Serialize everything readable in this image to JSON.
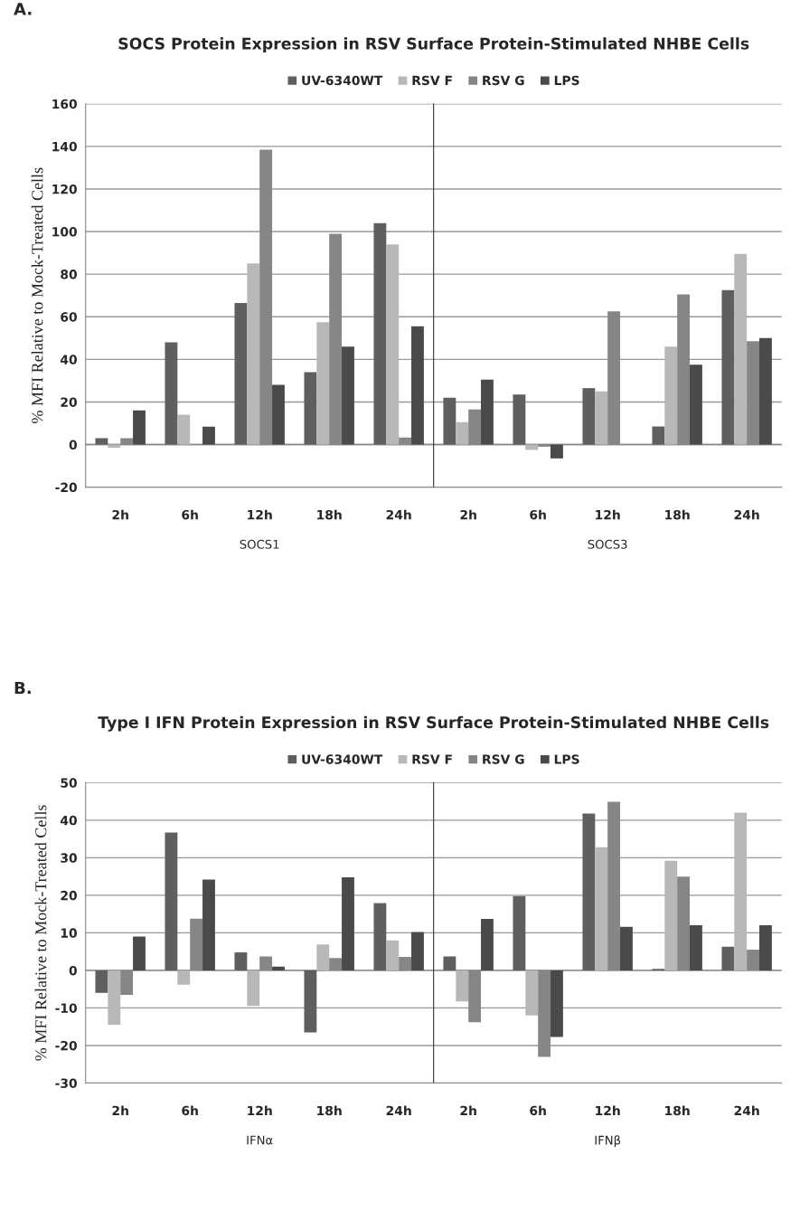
{
  "chart_data": [
    {
      "type": "bar",
      "title": "SOCS Protein Expression in RSV Surface Protein-Stimulated NHBE Cells",
      "ylabel": "% MFI Relative to Mock-Treated Cells",
      "xlabel": "SOCS1",
      "categories": [
        "2h",
        "6h",
        "12h",
        "18h",
        "24h"
      ],
      "series": [
        {
          "name": "UV-6340WT",
          "color": "#5f5f5f",
          "values": [
            3,
            48,
            66.5,
            34,
            104
          ]
        },
        {
          "name": "RSV F",
          "color": "#b8b8b8",
          "values": [
            -1.5,
            14,
            85,
            57.5,
            94
          ]
        },
        {
          "name": "RSV G",
          "color": "#868686",
          "values": [
            3,
            0,
            138.5,
            99,
            3.3
          ]
        },
        {
          "name": "LPS",
          "color": "#4a4a4a",
          "values": [
            16,
            8.4,
            28,
            46,
            55.5
          ]
        }
      ],
      "ylim": [
        -20,
        160
      ],
      "yticks": [
        -20,
        0,
        20,
        40,
        60,
        80,
        100,
        120,
        140,
        160
      ],
      "grid": "y",
      "legend": "top",
      "annotations": [
        "A."
      ]
    },
    {
      "type": "bar",
      "xlabel": "SOCS3",
      "categories": [
        "2h",
        "6h",
        "12h",
        "18h",
        "24h"
      ],
      "series": [
        {
          "color": "#5f5f5f",
          "values": [
            22,
            23.5,
            26.5,
            8.5,
            72.5
          ]
        },
        {
          "color": "#b8b8b8",
          "values": [
            10.5,
            -2.5,
            25,
            46,
            89.5
          ]
        },
        {
          "color": "#868686",
          "values": [
            16.5,
            -1,
            62.5,
            70.5,
            48.5
          ]
        },
        {
          "color": "#4a4a4a",
          "values": [
            30.5,
            -6.5,
            0,
            37.5,
            50
          ]
        }
      ],
      "ylim": [
        -20,
        160
      ],
      "yticks": [
        -20,
        0,
        20,
        40,
        60,
        80,
        100,
        120,
        140,
        160
      ],
      "grid": "y",
      "tick_labels": "x"
    },
    {
      "type": "bar",
      "title": "Type I IFN Protein Expression in RSV Surface Protein-Stimulated NHBE Cells",
      "ylabel": "% MFI Relative to Mock-Treated Cells",
      "xlabel": "IFNα",
      "categories": [
        "2h",
        "6h",
        "12h",
        "18h",
        "24h"
      ],
      "series": [
        {
          "name": "UV-6340WT",
          "color": "#5f5f5f",
          "values": [
            -6,
            36.7,
            4.8,
            -16.5,
            17.9
          ]
        },
        {
          "name": "RSV F",
          "color": "#b8b8b8",
          "values": [
            -14.5,
            -3.8,
            -9.5,
            6.9,
            8
          ]
        },
        {
          "name": "RSV G",
          "color": "#868686",
          "values": [
            -6.5,
            13.8,
            3.7,
            3.3,
            3.6
          ]
        },
        {
          "name": "LPS",
          "color": "#4a4a4a",
          "values": [
            9,
            24.2,
            1,
            24.8,
            10.2
          ]
        }
      ],
      "ylim": [
        -30,
        50
      ],
      "yticks": [
        -30,
        -20,
        -10,
        0,
        10,
        20,
        30,
        40,
        50
      ],
      "grid": "y",
      "legend": "top",
      "annotations": [
        "B."
      ]
    },
    {
      "type": "bar",
      "xlabel": "IFNβ",
      "categories": [
        "2h",
        "6h",
        "12h",
        "18h",
        "24h"
      ],
      "series": [
        {
          "color": "#5f5f5f",
          "values": [
            3.7,
            19.8,
            41.8,
            0.4,
            6.3
          ]
        },
        {
          "color": "#b8b8b8",
          "values": [
            -8.3,
            -12,
            32.8,
            29.2,
            42
          ]
        },
        {
          "color": "#868686",
          "values": [
            -13.8,
            -23,
            44.9,
            25,
            5.5
          ]
        },
        {
          "color": "#4a4a4a",
          "values": [
            13.7,
            -17.7,
            11.6,
            12,
            12
          ]
        }
      ],
      "ylim": [
        -30,
        50
      ],
      "yticks": [
        -30,
        -20,
        -10,
        0,
        10,
        20,
        30,
        40,
        50
      ],
      "grid": "y",
      "tick_labels": "x"
    }
  ]
}
